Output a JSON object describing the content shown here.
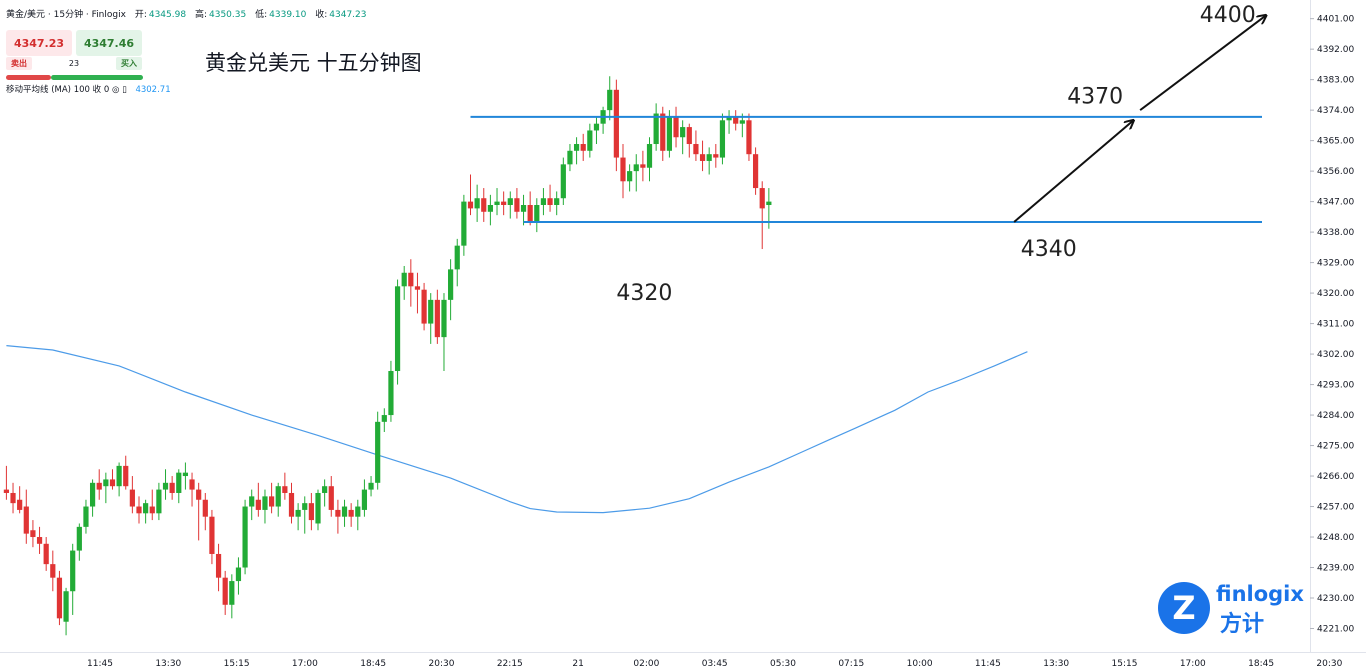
{
  "header": {
    "symbol": "黄金/美元 · 15分钟 · Finlogix",
    "open_label": "开:",
    "open": "4345.98",
    "high_label": "高:",
    "high": "4350.35",
    "low_label": "低:",
    "low": "4339.10",
    "close_label": "收:",
    "close": "4347.23"
  },
  "trade": {
    "sell_price": "4347.23",
    "buy_price": "4347.46",
    "sell_label": "卖出",
    "buy_label": "买入",
    "spread": "23"
  },
  "indicator": {
    "label": "移动平均线 (MA)",
    "params": "100 收 0",
    "value": "4302.71"
  },
  "title": "黄金兑美元 十五分钟图",
  "logo": {
    "name": "finlogix",
    "sub": "方计"
  },
  "colors": {
    "up": "#22ab36",
    "down": "#e03434",
    "ma": "#4c9be8",
    "level": "#2186d9",
    "arrow": "#111111"
  },
  "chart_data": {
    "type": "candlestick",
    "title": "黄金兑美元 十五分钟图",
    "ylim": [
      4217,
      4405
    ],
    "y_ticks": [
      "4401.00",
      "4392.00",
      "4383.00",
      "4374.00",
      "4365.00",
      "4356.00",
      "4347.00",
      "4338.00",
      "4329.00",
      "4320.00",
      "4311.00",
      "4302.00",
      "4293.00",
      "4284.00",
      "4275.00",
      "4266.00",
      "4257.00",
      "4248.00",
      "4239.00",
      "4230.00",
      "4221.00"
    ],
    "x_ticks": [
      "11:45",
      "13:30",
      "15:15",
      "17:00",
      "18:45",
      "20:30",
      "22:15",
      "21",
      "02:00",
      "03:45",
      "05:30",
      "07:15",
      "10:00",
      "11:45",
      "13:30",
      "15:15",
      "17:00",
      "18:45",
      "20:30"
    ],
    "ohlc": [
      [
        4262,
        4269,
        4259,
        4261
      ],
      [
        4261,
        4264,
        4255,
        4258
      ],
      [
        4259,
        4263,
        4255,
        4256
      ],
      [
        4257,
        4262,
        4246,
        4249
      ],
      [
        4250,
        4253,
        4245,
        4248
      ],
      [
        4248,
        4251,
        4243,
        4246
      ],
      [
        4246,
        4248,
        4238,
        4240
      ],
      [
        4240,
        4244,
        4232,
        4236
      ],
      [
        4236,
        4238,
        4222,
        4224
      ],
      [
        4223,
        4233,
        4219,
        4232
      ],
      [
        4232,
        4246,
        4225,
        4244
      ],
      [
        4244,
        4252,
        4241,
        4251
      ],
      [
        4251,
        4259,
        4249,
        4257
      ],
      [
        4257,
        4265,
        4254,
        4264
      ],
      [
        4264,
        4268,
        4259,
        4262
      ],
      [
        4263,
        4267,
        4258,
        4265
      ],
      [
        4265,
        4268,
        4262,
        4263
      ],
      [
        4263,
        4270,
        4260,
        4269
      ],
      [
        4269,
        4272,
        4262,
        4263
      ],
      [
        4262,
        4266,
        4255,
        4257
      ],
      [
        4257,
        4260,
        4252,
        4255
      ],
      [
        4255,
        4259,
        4252,
        4258
      ],
      [
        4257,
        4262,
        4253,
        4255
      ],
      [
        4255,
        4264,
        4253,
        4262
      ],
      [
        4262,
        4268,
        4259,
        4264
      ],
      [
        4264,
        4266,
        4259,
        4261
      ],
      [
        4261,
        4268,
        4258,
        4267
      ],
      [
        4266,
        4270,
        4262,
        4267
      ],
      [
        4265,
        4267,
        4257,
        4262
      ],
      [
        4262,
        4264,
        4247,
        4259
      ],
      [
        4259,
        4261,
        4250,
        4254
      ],
      [
        4254,
        4256,
        4240,
        4243
      ],
      [
        4243,
        4246,
        4232,
        4236
      ],
      [
        4236,
        4238,
        4225,
        4228
      ],
      [
        4228,
        4237,
        4224,
        4235
      ],
      [
        4235,
        4242,
        4231,
        4239
      ],
      [
        4239,
        4259,
        4237,
        4257
      ],
      [
        4257,
        4262,
        4253,
        4260
      ],
      [
        4259,
        4264,
        4254,
        4256
      ],
      [
        4256,
        4262,
        4252,
        4260
      ],
      [
        4260,
        4264,
        4255,
        4257
      ],
      [
        4257,
        4264,
        4254,
        4263
      ],
      [
        4263,
        4267,
        4259,
        4261
      ],
      [
        4261,
        4264,
        4252,
        4254
      ],
      [
        4254,
        4258,
        4250,
        4256
      ],
      [
        4256,
        4260,
        4249,
        4258
      ],
      [
        4258,
        4261,
        4250,
        4253
      ],
      [
        4252,
        4262,
        4250,
        4261
      ],
      [
        4261,
        4265,
        4257,
        4263
      ],
      [
        4263,
        4266,
        4254,
        4256
      ],
      [
        4256,
        4259,
        4249,
        4254
      ],
      [
        4254,
        4259,
        4251,
        4257
      ],
      [
        4256,
        4258,
        4251,
        4254
      ],
      [
        4254,
        4259,
        4250,
        4257
      ],
      [
        4256,
        4265,
        4254,
        4262
      ],
      [
        4262,
        4266,
        4260,
        4264
      ],
      [
        4264,
        4285,
        4262,
        4282
      ],
      [
        4282,
        4286,
        4279,
        4284
      ],
      [
        4284,
        4300,
        4282,
        4297
      ],
      [
        4297,
        4324,
        4293,
        4322
      ],
      [
        4322,
        4328,
        4318,
        4326
      ],
      [
        4326,
        4330,
        4316,
        4322
      ],
      [
        4322,
        4326,
        4314,
        4321
      ],
      [
        4321,
        4323,
        4309,
        4311
      ],
      [
        4311,
        4320,
        4305,
        4318
      ],
      [
        4318,
        4321,
        4305,
        4307
      ],
      [
        4307,
        4320,
        4297,
        4318
      ],
      [
        4318,
        4330,
        4312,
        4327
      ],
      [
        4327,
        4336,
        4322,
        4334
      ],
      [
        4334,
        4349,
        4331,
        4347
      ],
      [
        4347,
        4355,
        4343,
        4345
      ],
      [
        4345,
        4352,
        4341,
        4348
      ],
      [
        4348,
        4351,
        4341,
        4344
      ],
      [
        4344,
        4349,
        4340,
        4346
      ],
      [
        4346,
        4351,
        4343,
        4347
      ],
      [
        4347,
        4350,
        4343,
        4346
      ],
      [
        4346,
        4350,
        4342,
        4348
      ],
      [
        4348,
        4351,
        4342,
        4344
      ],
      [
        4344,
        4349,
        4340,
        4346
      ],
      [
        4346,
        4350,
        4340,
        4341
      ],
      [
        4341,
        4348,
        4338,
        4346
      ],
      [
        4346,
        4351,
        4343,
        4348
      ],
      [
        4348,
        4352,
        4344,
        4346
      ],
      [
        4346,
        4350,
        4343,
        4348
      ],
      [
        4348,
        4360,
        4346,
        4358
      ],
      [
        4358,
        4364,
        4356,
        4362
      ],
      [
        4362,
        4366,
        4358,
        4364
      ],
      [
        4364,
        4367,
        4359,
        4362
      ],
      [
        4362,
        4370,
        4360,
        4368
      ],
      [
        4368,
        4372,
        4364,
        4370
      ],
      [
        4370,
        4375,
        4367,
        4374
      ],
      [
        4374,
        4384,
        4371,
        4380
      ],
      [
        4380,
        4383,
        4356,
        4360
      ],
      [
        4360,
        4364,
        4348,
        4353
      ],
      [
        4353,
        4358,
        4350,
        4356
      ],
      [
        4356,
        4361,
        4350,
        4358
      ],
      [
        4358,
        4362,
        4353,
        4357
      ],
      [
        4357,
        4366,
        4353,
        4364
      ],
      [
        4364,
        4376,
        4362,
        4373
      ],
      [
        4373,
        4375,
        4359,
        4362
      ],
      [
        4362,
        4374,
        4360,
        4372
      ],
      [
        4372,
        4375,
        4363,
        4366
      ],
      [
        4366,
        4371,
        4361,
        4369
      ],
      [
        4369,
        4370,
        4360,
        4364
      ],
      [
        4364,
        4368,
        4359,
        4361
      ],
      [
        4361,
        4365,
        4356,
        4359
      ],
      [
        4359,
        4363,
        4355,
        4361
      ],
      [
        4361,
        4364,
        4357,
        4360
      ],
      [
        4360,
        4373,
        4358,
        4371
      ],
      [
        4371,
        4374,
        4367,
        4372
      ],
      [
        4372,
        4374,
        4368,
        4370
      ],
      [
        4370,
        4373,
        4366,
        4371
      ],
      [
        4371,
        4373,
        4359,
        4361
      ],
      [
        4361,
        4363,
        4349,
        4351
      ],
      [
        4351,
        4353,
        4333,
        4345
      ],
      [
        4346,
        4351,
        4339,
        4347
      ]
    ],
    "ma": {
      "name": "MA 100",
      "points": [
        [
          0,
          4304.5
        ],
        [
          7,
          4303.2
        ],
        [
          17,
          4298.5
        ],
        [
          27,
          4290.8
        ],
        [
          37,
          4284
        ],
        [
          47,
          4278
        ],
        [
          57,
          4271.6
        ],
        [
          67,
          4265.4
        ],
        [
          76,
          4258.4
        ],
        [
          79,
          4256.4
        ],
        [
          83,
          4255.4
        ],
        [
          90,
          4255.2
        ],
        [
          97,
          4256.5
        ],
        [
          103,
          4259.3
        ],
        [
          109,
          4264.2
        ],
        [
          115,
          4268.7
        ],
        [
          120,
          4273.1
        ],
        [
          124,
          4276.6
        ],
        [
          128,
          4280.1
        ],
        [
          134,
          4285.4
        ],
        [
          139,
          4290.8
        ],
        [
          144,
          4294.5
        ],
        [
          149,
          4298.5
        ],
        [
          154,
          4302.7
        ]
      ]
    },
    "levels": [
      {
        "value": 4372,
        "x_start": 70
      },
      {
        "value": 4341,
        "x_start": 78
      }
    ],
    "annotations": [
      {
        "text": "4320",
        "x": 92,
        "y": 4318
      },
      {
        "text": "4340",
        "x": 153,
        "y": 4331
      },
      {
        "text": "4370",
        "x": 160,
        "y": 4376
      },
      {
        "text": "4400",
        "x": 180,
        "y": 4400
      }
    ],
    "arrows": [
      {
        "from": [
          152,
          4341
        ],
        "to": [
          170,
          4371
        ]
      },
      {
        "from": [
          171,
          4374
        ],
        "to": [
          190,
          4402
        ]
      }
    ]
  }
}
